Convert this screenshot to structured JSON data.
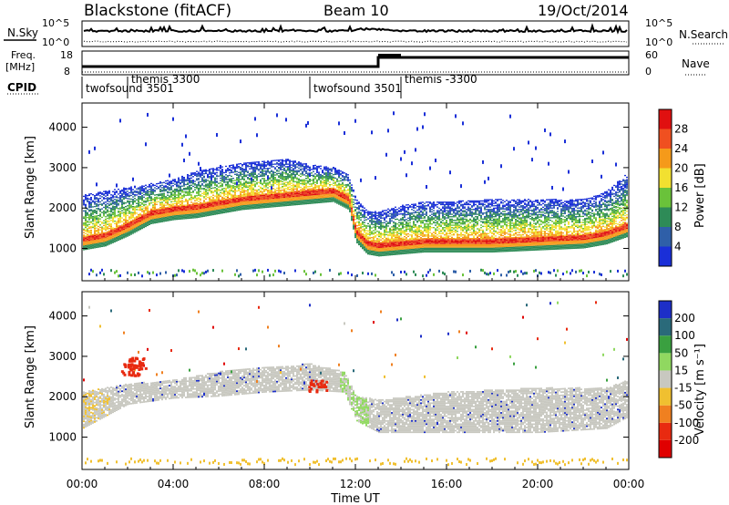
{
  "header": {
    "station": "Blackstone (fitACF)",
    "beam": "Beam 10",
    "date": "19/Oct/2014"
  },
  "noise_panel": {
    "left_label": "N.Sky",
    "right_label": "N.Search",
    "left_ticks": [
      "10^5",
      "10^0"
    ],
    "right_ticks": [
      "10^5",
      "10^0"
    ]
  },
  "freq_panel": {
    "left_label_line1": "Freq.",
    "left_label_line2": "[MHz]",
    "left_ticks": [
      "18",
      "8"
    ],
    "right_label": "Nave",
    "right_ticks": [
      "60",
      "0"
    ]
  },
  "cpid": {
    "label": "CPID",
    "segments": [
      {
        "name": "twofsound 3501",
        "start": 0,
        "end": 2
      },
      {
        "name": "themis 3300",
        "start": 2,
        "end": 10
      },
      {
        "name": "twofsound 3501",
        "start": 10,
        "end": 14
      },
      {
        "name": "themis -3300",
        "start": 14,
        "end": 24
      }
    ]
  },
  "x_axis": {
    "label": "Time UT",
    "ticks": [
      "00:00",
      "04:00",
      "08:00",
      "12:00",
      "16:00",
      "20:00",
      "00:00"
    ]
  },
  "range_axis": {
    "label": "Slant Range [km]",
    "ticks": [
      "1000",
      "2000",
      "3000",
      "4000"
    ]
  },
  "power_colorbar": {
    "label": "Power [dB]",
    "ticks": [
      "4",
      "8",
      "12",
      "16",
      "20",
      "24",
      "28"
    ],
    "colors": [
      "#1a2fd8",
      "#2f5fa8",
      "#2e8b57",
      "#6ac23a",
      "#f2e030",
      "#f59a1a",
      "#f05020",
      "#e01010"
    ]
  },
  "velocity_colorbar": {
    "label": "Velocity [m s⁻¹]",
    "ticks": [
      "200",
      "100",
      "50",
      "15",
      "-15",
      "-50",
      "-100",
      "-200"
    ],
    "colors": [
      "#1d2fc8",
      "#2a6a7a",
      "#3aa040",
      "#90d860",
      "#c8c8c0",
      "#f0c030",
      "#f08020",
      "#e82a10",
      "#e00000"
    ]
  },
  "chart_data": {
    "type": "heatmap",
    "title": "Blackstone (fitACF)",
    "xlabel": "Time UT",
    "ylabel": "Slant Range [km]",
    "xlim": [
      0,
      24
    ],
    "ylim": [
      200,
      4600
    ],
    "power_band": {
      "description": "Main high-power echo band slant range (km) vs hour",
      "hours": [
        0,
        1,
        2,
        3,
        4,
        5,
        6,
        7,
        8,
        9,
        10,
        11,
        11.7,
        12,
        12.5,
        13,
        14,
        15,
        16,
        18,
        20,
        22,
        23,
        24
      ],
      "center_km": [
        1200,
        1300,
        1550,
        1850,
        1950,
        2000,
        2100,
        2200,
        2250,
        2300,
        2350,
        2400,
        2200,
        1400,
        1100,
        1050,
        1100,
        1150,
        1150,
        1150,
        1200,
        1250,
        1350,
        1550
      ],
      "upper_km": [
        2300,
        2400,
        2500,
        2600,
        2700,
        2900,
        3000,
        3100,
        3150,
        3200,
        3050,
        3000,
        2800,
        2200,
        1900,
        1900,
        2050,
        2150,
        2150,
        2200,
        2200,
        2200,
        2400,
        2900
      ]
    },
    "velocity_band": {
      "description": "Near-zero velocity ground scatter range band (km)",
      "hours": [
        0,
        2,
        4,
        6,
        8,
        10,
        11.5,
        12,
        13,
        16,
        20,
        23,
        24
      ],
      "lower_km": [
        1200,
        1800,
        1950,
        2000,
        2100,
        2150,
        2100,
        1400,
        1100,
        1100,
        1100,
        1200,
        1500
      ],
      "upper_km": [
        2100,
        2300,
        2400,
        2600,
        2700,
        2800,
        2600,
        2000,
        1900,
        2100,
        2200,
        2200,
        2400
      ]
    },
    "near_range_echo_km": 350
  }
}
